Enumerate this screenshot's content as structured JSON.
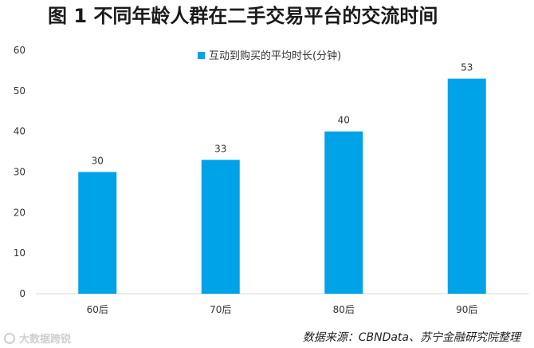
{
  "chart_data": {
    "type": "bar",
    "title": "图 1 不同年龄人群在二手交易平台的交流时间",
    "categories": [
      "60后",
      "70后",
      "80后",
      "90后"
    ],
    "series": [
      {
        "name": "互动到购买的平均时长(分钟)",
        "values": [
          30,
          33,
          40,
          53
        ]
      }
    ],
    "data_labels": [
      "30",
      "33",
      "40",
      "53"
    ],
    "ylim": [
      0,
      60
    ],
    "yticks": [
      0,
      10,
      20,
      30,
      40,
      50,
      60
    ],
    "ytick_labels": [
      "0",
      "10",
      "20",
      "30",
      "40",
      "50",
      "60"
    ],
    "xlabel": "",
    "ylabel": "",
    "grid": false,
    "legend_position": "top-center",
    "bar_color": "#00A2E8"
  },
  "source": "数据来源：CBNData、苏宁金融研究院整理",
  "watermark": "大数据跨锐"
}
